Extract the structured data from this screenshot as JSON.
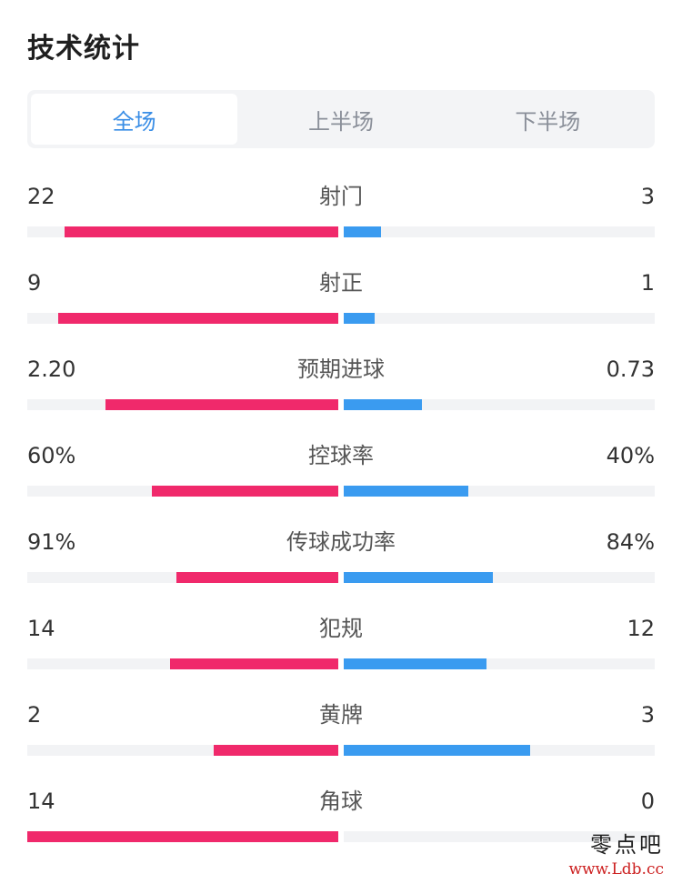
{
  "title": "技术统计",
  "tabs": [
    {
      "label": "全场",
      "active": true
    },
    {
      "label": "上半场",
      "active": false
    },
    {
      "label": "下半场",
      "active": false
    }
  ],
  "colors": {
    "home": "#f0296b",
    "away": "#3a9bf0",
    "track": "#f2f3f5",
    "tab_active": "#3a8ee6"
  },
  "stats": [
    {
      "label": "射门",
      "left": "22",
      "right": "3",
      "left_ratio": 0.88,
      "right_ratio": 0.12
    },
    {
      "label": "射正",
      "left": "9",
      "right": "1",
      "left_ratio": 0.9,
      "right_ratio": 0.1
    },
    {
      "label": "预期进球",
      "left": "2.20",
      "right": "0.73",
      "left_ratio": 0.75,
      "right_ratio": 0.25
    },
    {
      "label": "控球率",
      "left": "60%",
      "right": "40%",
      "left_ratio": 0.6,
      "right_ratio": 0.4
    },
    {
      "label": "传球成功率",
      "left": "91%",
      "right": "84%",
      "left_ratio": 0.52,
      "right_ratio": 0.48
    },
    {
      "label": "犯规",
      "left": "14",
      "right": "12",
      "left_ratio": 0.54,
      "right_ratio": 0.46
    },
    {
      "label": "黄牌",
      "left": "2",
      "right": "3",
      "left_ratio": 0.4,
      "right_ratio": 0.6
    },
    {
      "label": "角球",
      "left": "14",
      "right": "0",
      "left_ratio": 1.0,
      "right_ratio": 0.0
    }
  ],
  "watermark": {
    "name": "零点吧",
    "url": "www.Ldb.cc"
  }
}
